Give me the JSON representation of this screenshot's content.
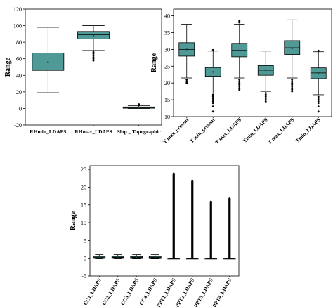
{
  "chart_data": [
    {
      "type": "box",
      "ylabel": "Range",
      "ylim": [
        -20,
        120
      ],
      "yticks": [
        -20,
        0,
        20,
        40,
        60,
        80,
        100,
        120
      ],
      "box_color": "#4f9a96",
      "categories": [
        "RHmin_LDAPS",
        "RHmax_LDAPS",
        "Slop _ Topographic"
      ],
      "boxes": [
        {
          "whisker_low": 19,
          "q1": 46,
          "median": 55,
          "mean": 56,
          "q3": 67,
          "whisker_high": 98,
          "outliers": []
        },
        {
          "whisker_low": 70,
          "q1": 84,
          "median": 89,
          "mean": 88,
          "q3": 93,
          "whisker_high": 100,
          "outliers": [
            68,
            66,
            64,
            62,
            60,
            58
          ]
        },
        {
          "whisker_low": 0,
          "q1": 0.3,
          "median": 0.8,
          "mean": 1.2,
          "q3": 1.8,
          "whisker_high": 3.2,
          "outliers": [
            4,
            5
          ]
        }
      ]
    },
    {
      "type": "box",
      "ylabel": "Range",
      "ylim": [
        10,
        42
      ],
      "yticks": [
        10,
        15,
        20,
        25,
        30,
        35,
        40
      ],
      "box_color": "#4f9a96",
      "categories": [
        "T max_present",
        "T min_present",
        "T max_LDAPS",
        "Tmin_LDAPS",
        "T max_LDAPS",
        "Tmin_LDAPS"
      ],
      "boxes": [
        {
          "whisker_low": 21.5,
          "q1": 28,
          "median": 30,
          "mean": 30,
          "q3": 32,
          "whisker_high": 37.5,
          "outliers": [
            21,
            20.5,
            20
          ]
        },
        {
          "whisker_low": 17,
          "q1": 22,
          "median": 23.3,
          "mean": 23.3,
          "q3": 24.6,
          "whisker_high": 29.5,
          "outliers": [
            29.8,
            16.5,
            16,
            15.5,
            15,
            14.5,
            14,
            13,
            11.5
          ]
        },
        {
          "whisker_low": 21.5,
          "q1": 27.8,
          "median": 29.7,
          "mean": 29.7,
          "q3": 31.8,
          "whisker_high": 37.5,
          "outliers": [
            38,
            38.3,
            38.6,
            21,
            20.5,
            20,
            19.5,
            19,
            18.5,
            18
          ]
        },
        {
          "whisker_low": 17.5,
          "q1": 22.3,
          "median": 23.8,
          "mean": 23.8,
          "q3": 25.2,
          "whisker_high": 29.5,
          "outliers": [
            17,
            16.5,
            16,
            15.5,
            15,
            14.5
          ]
        },
        {
          "whisker_low": 21.5,
          "q1": 28.5,
          "median": 30.5,
          "mean": 30.3,
          "q3": 32.6,
          "whisker_high": 38.8,
          "outliers": [
            21,
            20.5,
            20,
            19.5,
            19,
            18.5,
            18,
            17.5
          ]
        },
        {
          "whisker_low": 16.5,
          "q1": 21.3,
          "median": 23,
          "mean": 23,
          "q3": 24.5,
          "whisker_high": 29.3,
          "outliers": [
            29.6,
            16,
            15.5,
            15,
            14.5,
            14,
            13,
            11.5
          ]
        }
      ]
    },
    {
      "type": "box",
      "ylabel": "Range",
      "ylim": [
        -5,
        26
      ],
      "yticks": [
        -5,
        0,
        5,
        10,
        15,
        20,
        25
      ],
      "box_color": "#4f9a96",
      "categories": [
        "CC1_LDAPS",
        "CC2_LDAPS",
        "CC3_LDAPS",
        "CC4_LDAPS",
        "PPT1_LDAPS",
        "PPT2_LDAPS",
        "PPT3_LDAPS",
        "PPT4_LDAPS"
      ],
      "boxes": [
        {
          "whisker_low": 0,
          "q1": 0.15,
          "median": 0.35,
          "mean": 0.38,
          "q3": 0.6,
          "whisker_high": 1,
          "outliers": []
        },
        {
          "whisker_low": 0,
          "q1": 0.15,
          "median": 0.3,
          "mean": 0.35,
          "q3": 0.55,
          "whisker_high": 1,
          "outliers": []
        },
        {
          "whisker_low": 0,
          "q1": 0.12,
          "median": 0.28,
          "mean": 0.33,
          "q3": 0.5,
          "whisker_high": 1,
          "outliers": []
        },
        {
          "whisker_low": 0,
          "q1": 0.1,
          "median": 0.25,
          "mean": 0.3,
          "q3": 0.5,
          "whisker_high": 1,
          "outliers": []
        },
        {
          "whisker_low": 0,
          "q1": 0,
          "median": 0,
          "mean": 0.6,
          "q3": 0,
          "whisker_high": 0,
          "outlier_range": [
            0.1,
            23.8
          ]
        },
        {
          "whisker_low": 0,
          "q1": 0,
          "median": 0,
          "mean": 0.5,
          "q3": 0,
          "whisker_high": 0,
          "outlier_range": [
            0.1,
            21.8
          ]
        },
        {
          "whisker_low": 0,
          "q1": 0,
          "median": 0,
          "mean": 0.3,
          "q3": 0,
          "whisker_high": 0,
          "outlier_range": [
            0.1,
            15.9
          ]
        },
        {
          "whisker_low": 0,
          "q1": 0,
          "median": 0,
          "mean": 0.3,
          "q3": 0,
          "whisker_high": 0,
          "outlier_range": [
            0.1,
            16.8
          ]
        }
      ]
    }
  ]
}
